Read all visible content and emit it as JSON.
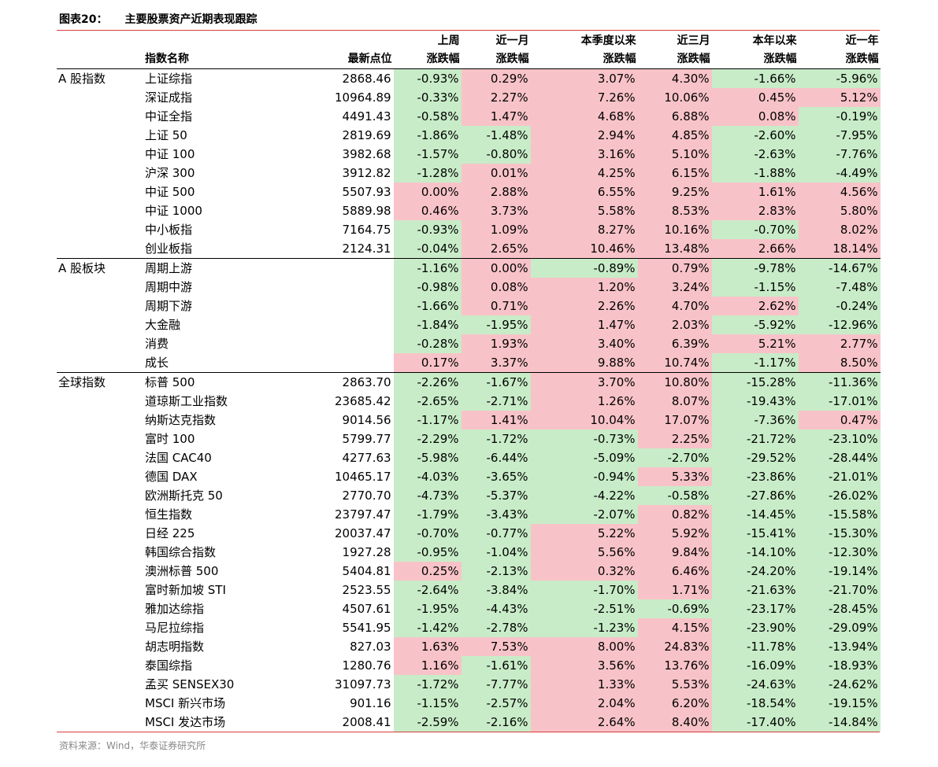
{
  "figure": {
    "label": "图表20：",
    "title": "主要股票资产近期表现跟踪"
  },
  "header": {
    "row1": [
      "",
      "",
      "",
      "上周",
      "近一月",
      "本季度以来",
      "近三月",
      "本年以来",
      "近一年"
    ],
    "row2": [
      "",
      "指数名称",
      "最新点位",
      "涨跌幅",
      "涨跌幅",
      "涨跌幅",
      "涨跌幅",
      "涨跌幅",
      "涨跌幅"
    ]
  },
  "groups": [
    {
      "name": "A 股指数",
      "rows": [
        {
          "name": "上证综指",
          "level": "2868.46",
          "vals": [
            "-0.93%",
            "0.29%",
            "3.07%",
            "4.30%",
            "-1.66%",
            "-5.96%"
          ]
        },
        {
          "name": "深证成指",
          "level": "10964.89",
          "vals": [
            "-0.33%",
            "2.27%",
            "7.26%",
            "10.06%",
            "0.45%",
            "5.12%"
          ]
        },
        {
          "name": "中证全指",
          "level": "4491.43",
          "vals": [
            "-0.58%",
            "1.47%",
            "4.68%",
            "6.88%",
            "0.08%",
            "-0.19%"
          ]
        },
        {
          "name": "上证 50",
          "level": "2819.69",
          "vals": [
            "-1.86%",
            "-1.48%",
            "2.94%",
            "4.85%",
            "-2.60%",
            "-7.95%"
          ]
        },
        {
          "name": "中证 100",
          "level": "3982.68",
          "vals": [
            "-1.57%",
            "-0.80%",
            "3.16%",
            "5.10%",
            "-2.63%",
            "-7.76%"
          ]
        },
        {
          "name": "沪深 300",
          "level": "3912.82",
          "vals": [
            "-1.28%",
            "0.01%",
            "4.25%",
            "6.15%",
            "-1.88%",
            "-4.49%"
          ]
        },
        {
          "name": "中证 500",
          "level": "5507.93",
          "vals": [
            "0.00%",
            "2.88%",
            "6.55%",
            "9.25%",
            "1.61%",
            "4.56%"
          ]
        },
        {
          "name": "中证 1000",
          "level": "5889.98",
          "vals": [
            "0.46%",
            "3.73%",
            "5.58%",
            "8.53%",
            "2.83%",
            "5.80%"
          ]
        },
        {
          "name": "中小板指",
          "level": "7164.75",
          "vals": [
            "-0.93%",
            "1.09%",
            "8.27%",
            "10.16%",
            "-0.70%",
            "8.02%"
          ]
        },
        {
          "name": "创业板指",
          "level": "2124.31",
          "vals": [
            "-0.04%",
            "2.65%",
            "10.46%",
            "13.48%",
            "2.66%",
            "18.14%"
          ]
        }
      ]
    },
    {
      "name": "A 股板块",
      "rows": [
        {
          "name": "周期上游",
          "level": "",
          "vals": [
            "-1.16%",
            "0.00%",
            "-0.89%",
            "0.79%",
            "-9.78%",
            "-14.67%"
          ]
        },
        {
          "name": "周期中游",
          "level": "",
          "vals": [
            "-0.98%",
            "0.08%",
            "1.20%",
            "3.24%",
            "-1.15%",
            "-7.48%"
          ]
        },
        {
          "name": "周期下游",
          "level": "",
          "vals": [
            "-1.66%",
            "0.71%",
            "2.26%",
            "4.70%",
            "2.62%",
            "-0.24%"
          ]
        },
        {
          "name": "大金融",
          "level": "",
          "vals": [
            "-1.84%",
            "-1.95%",
            "1.47%",
            "2.03%",
            "-5.92%",
            "-12.96%"
          ]
        },
        {
          "name": "消费",
          "level": "",
          "vals": [
            "-0.28%",
            "1.93%",
            "3.40%",
            "6.39%",
            "5.21%",
            "2.77%"
          ]
        },
        {
          "name": "成长",
          "level": "",
          "vals": [
            "0.17%",
            "3.37%",
            "9.88%",
            "10.74%",
            "-1.17%",
            "8.50%"
          ]
        }
      ]
    },
    {
      "name": "全球指数",
      "rows": [
        {
          "name": "标普 500",
          "level": "2863.70",
          "vals": [
            "-2.26%",
            "-1.67%",
            "3.70%",
            "10.80%",
            "-15.28%",
            "-11.36%"
          ]
        },
        {
          "name": "道琼斯工业指数",
          "level": "23685.42",
          "vals": [
            "-2.65%",
            "-2.71%",
            "1.26%",
            "8.07%",
            "-19.43%",
            "-17.01%"
          ]
        },
        {
          "name": "纳斯达克指数",
          "level": "9014.56",
          "vals": [
            "-1.17%",
            "1.41%",
            "10.04%",
            "17.07%",
            "-7.36%",
            "0.47%"
          ]
        },
        {
          "name": "富时 100",
          "level": "5799.77",
          "vals": [
            "-2.29%",
            "-1.72%",
            "-0.73%",
            "2.25%",
            "-21.72%",
            "-23.10%"
          ]
        },
        {
          "name": "法国 CAC40",
          "level": "4277.63",
          "vals": [
            "-5.98%",
            "-6.44%",
            "-5.09%",
            "-2.70%",
            "-29.52%",
            "-28.44%"
          ]
        },
        {
          "name": "德国 DAX",
          "level": "10465.17",
          "vals": [
            "-4.03%",
            "-3.65%",
            "-0.94%",
            "5.33%",
            "-23.86%",
            "-21.01%"
          ]
        },
        {
          "name": "欧洲斯托克 50",
          "level": "2770.70",
          "vals": [
            "-4.73%",
            "-5.37%",
            "-4.22%",
            "-0.58%",
            "-27.86%",
            "-26.02%"
          ]
        },
        {
          "name": "恒生指数",
          "level": "23797.47",
          "vals": [
            "-1.79%",
            "-3.43%",
            "-2.07%",
            "0.82%",
            "-14.45%",
            "-15.58%"
          ]
        },
        {
          "name": "日经 225",
          "level": "20037.47",
          "vals": [
            "-0.70%",
            "-0.77%",
            "5.22%",
            "5.92%",
            "-15.41%",
            "-15.30%"
          ]
        },
        {
          "name": "韩国综合指数",
          "level": "1927.28",
          "vals": [
            "-0.95%",
            "-1.04%",
            "5.56%",
            "9.84%",
            "-14.10%",
            "-12.30%"
          ]
        },
        {
          "name": "澳洲标普 500",
          "level": "5404.81",
          "vals": [
            "0.25%",
            "-2.13%",
            "0.32%",
            "6.46%",
            "-24.20%",
            "-19.14%"
          ]
        },
        {
          "name": "富时新加坡 STI",
          "level": "2523.55",
          "vals": [
            "-2.64%",
            "-3.84%",
            "-1.70%",
            "1.71%",
            "-21.63%",
            "-21.70%"
          ]
        },
        {
          "name": "雅加达综指",
          "level": "4507.61",
          "vals": [
            "-1.95%",
            "-4.43%",
            "-2.51%",
            "-0.69%",
            "-23.17%",
            "-28.45%"
          ]
        },
        {
          "name": "马尼拉综指",
          "level": "5541.95",
          "vals": [
            "-1.42%",
            "-2.78%",
            "-1.23%",
            "4.15%",
            "-23.90%",
            "-29.09%"
          ]
        },
        {
          "name": "胡志明指数",
          "level": "827.03",
          "vals": [
            "1.63%",
            "7.53%",
            "8.00%",
            "24.83%",
            "-11.78%",
            "-13.94%"
          ]
        },
        {
          "name": "泰国综指",
          "level": "1280.76",
          "vals": [
            "1.16%",
            "-1.61%",
            "3.56%",
            "13.76%",
            "-16.09%",
            "-18.93%"
          ]
        },
        {
          "name": "孟买 SENSEX30",
          "level": "31097.73",
          "vals": [
            "-1.72%",
            "-7.77%",
            "1.33%",
            "5.53%",
            "-24.63%",
            "-24.62%"
          ]
        },
        {
          "name": "MSCI 新兴市场",
          "level": "901.16",
          "vals": [
            "-1.15%",
            "-2.57%",
            "2.04%",
            "6.20%",
            "-18.54%",
            "-19.15%"
          ]
        },
        {
          "name": "MSCI 发达市场",
          "level": "2008.41",
          "vals": [
            "-2.59%",
            "-2.16%",
            "2.64%",
            "8.40%",
            "-17.40%",
            "-14.84%"
          ]
        }
      ]
    }
  ],
  "source": "资料来源：Wind，华泰证券研究所",
  "colors": {
    "positive_fill": "#f8c3c8",
    "negative_fill": "#c8ecc8",
    "rule": "#d63d3d"
  }
}
